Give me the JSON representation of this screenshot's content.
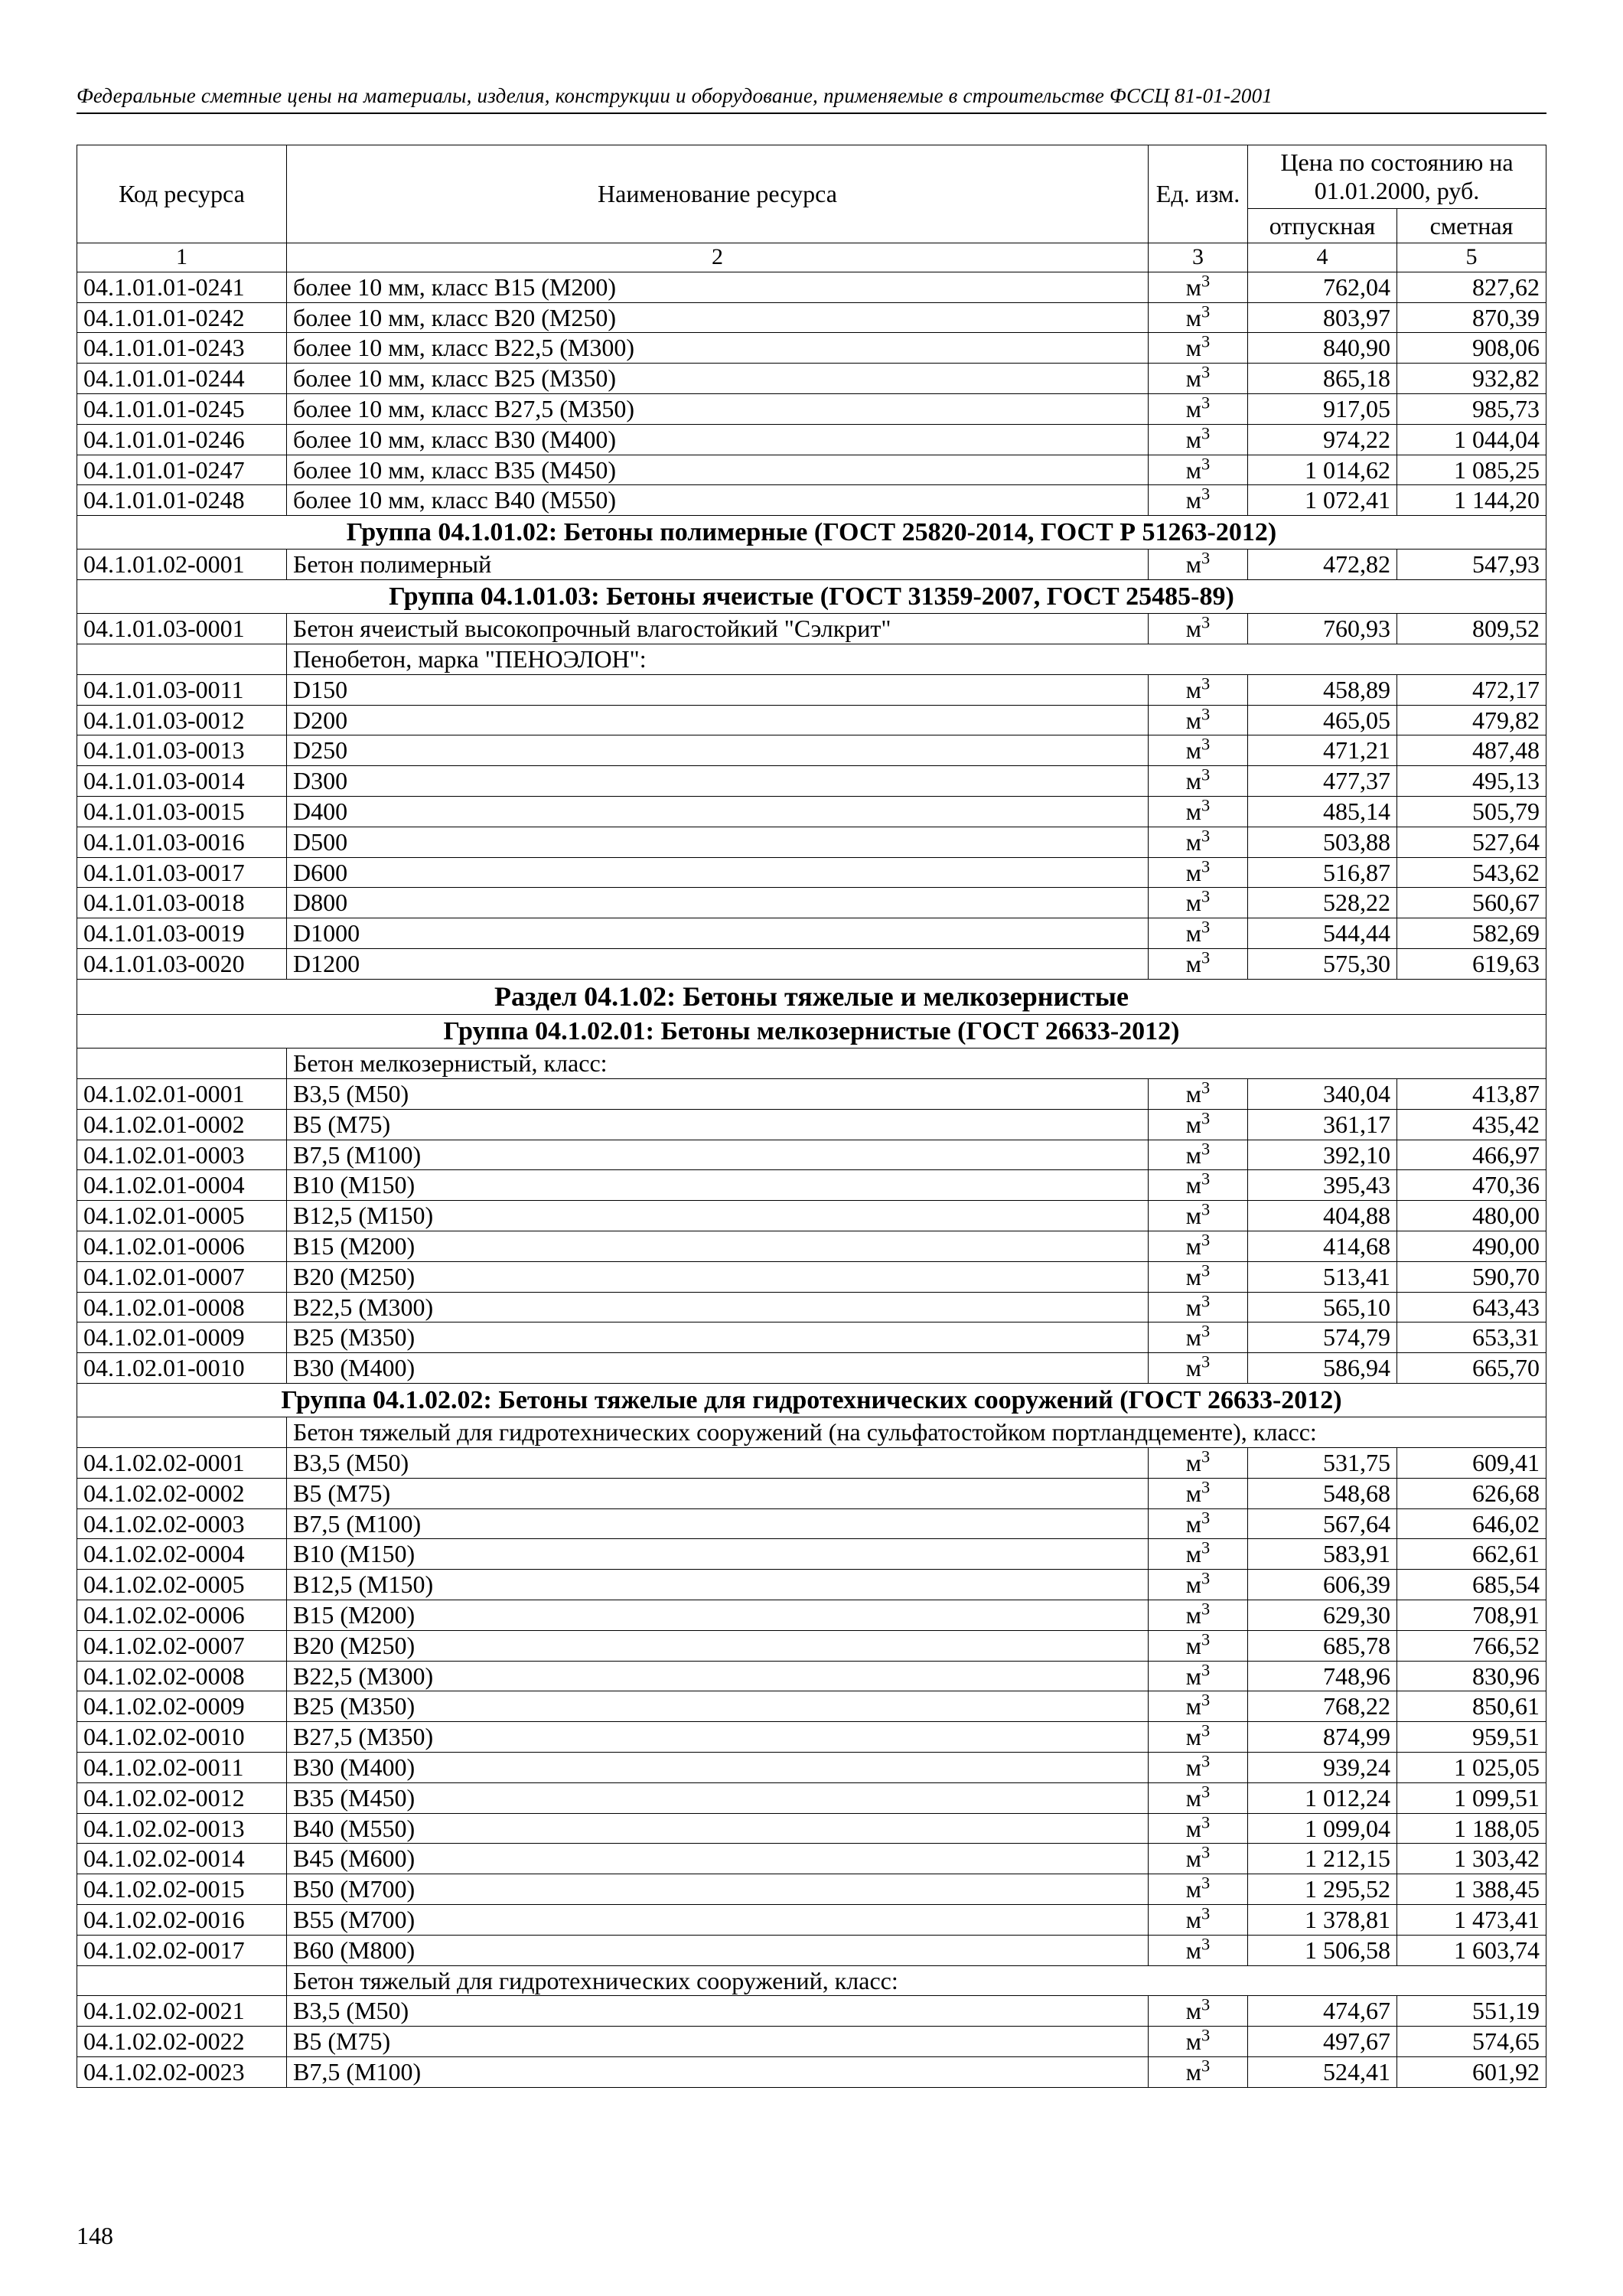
{
  "header_text": "Федеральные сметные цены на материалы, изделия, конструкции и оборудование, применяемые в строительстве ФССЦ 81-01-2001",
  "page_number": "148",
  "unit_m3_html": "м<sup>3</sup>",
  "table": {
    "head": {
      "code": "Код ресурса",
      "name": "Наименование ресурса",
      "unit": "Ед. изм.",
      "price_group": "Цена по состоянию на 01.01.2000, руб.",
      "p1": "отпускная",
      "p2": "сметная",
      "n1": "1",
      "n2": "2",
      "n3": "3",
      "n4": "4",
      "n5": "5"
    }
  },
  "rows": [
    {
      "t": "d",
      "code": "04.1.01.01-0241",
      "name": "более 10 мм, класс В15 (М200)",
      "unit": "m3",
      "p1": "762,04",
      "p2": "827,62"
    },
    {
      "t": "d",
      "code": "04.1.01.01-0242",
      "name": "более 10 мм, класс В20 (М250)",
      "unit": "m3",
      "p1": "803,97",
      "p2": "870,39"
    },
    {
      "t": "d",
      "code": "04.1.01.01-0243",
      "name": "более 10 мм, класс В22,5 (М300)",
      "unit": "m3",
      "p1": "840,90",
      "p2": "908,06"
    },
    {
      "t": "d",
      "code": "04.1.01.01-0244",
      "name": "более 10 мм, класс В25 (М350)",
      "unit": "m3",
      "p1": "865,18",
      "p2": "932,82"
    },
    {
      "t": "d",
      "code": "04.1.01.01-0245",
      "name": "более 10 мм, класс В27,5 (М350)",
      "unit": "m3",
      "p1": "917,05",
      "p2": "985,73"
    },
    {
      "t": "d",
      "code": "04.1.01.01-0246",
      "name": "более 10 мм, класс В30 (М400)",
      "unit": "m3",
      "p1": "974,22",
      "p2": "1 044,04"
    },
    {
      "t": "d",
      "code": "04.1.01.01-0247",
      "name": "более 10 мм, класс В35 (М450)",
      "unit": "m3",
      "p1": "1 014,62",
      "p2": "1 085,25"
    },
    {
      "t": "d",
      "code": "04.1.01.01-0248",
      "name": "более 10 мм, класс В40 (М550)",
      "unit": "m3",
      "p1": "1 072,41",
      "p2": "1 144,20"
    },
    {
      "t": "s",
      "title": "Группа 04.1.01.02: Бетоны полимерные (ГОСТ 25820-2014, ГОСТ Р 51263-2012)"
    },
    {
      "t": "d",
      "code": "04.1.01.02-0001",
      "name": "Бетон полимерный",
      "unit": "m3",
      "p1": "472,82",
      "p2": "547,93"
    },
    {
      "t": "s",
      "title": "Группа 04.1.01.03: Бетоны ячеистые (ГОСТ 31359-2007, ГОСТ 25485-89)"
    },
    {
      "t": "d",
      "code": "04.1.01.03-0001",
      "name": "Бетон ячеистый высокопрочный влагостойкий \"Сэлкрит\"",
      "unit": "m3",
      "p1": "760,93",
      "p2": "809,52"
    },
    {
      "t": "h",
      "name": "Пенобетон, марка \"ПЕНОЭЛОН\":"
    },
    {
      "t": "d",
      "code": "04.1.01.03-0011",
      "name": "D150",
      "unit": "m3",
      "p1": "458,89",
      "p2": "472,17"
    },
    {
      "t": "d",
      "code": "04.1.01.03-0012",
      "name": "D200",
      "unit": "m3",
      "p1": "465,05",
      "p2": "479,82"
    },
    {
      "t": "d",
      "code": "04.1.01.03-0013",
      "name": "D250",
      "unit": "m3",
      "p1": "471,21",
      "p2": "487,48"
    },
    {
      "t": "d",
      "code": "04.1.01.03-0014",
      "name": "D300",
      "unit": "m3",
      "p1": "477,37",
      "p2": "495,13"
    },
    {
      "t": "d",
      "code": "04.1.01.03-0015",
      "name": "D400",
      "unit": "m3",
      "p1": "485,14",
      "p2": "505,79"
    },
    {
      "t": "d",
      "code": "04.1.01.03-0016",
      "name": "D500",
      "unit": "m3",
      "p1": "503,88",
      "p2": "527,64"
    },
    {
      "t": "d",
      "code": "04.1.01.03-0017",
      "name": "D600",
      "unit": "m3",
      "p1": "516,87",
      "p2": "543,62"
    },
    {
      "t": "d",
      "code": "04.1.01.03-0018",
      "name": "D800",
      "unit": "m3",
      "p1": "528,22",
      "p2": "560,67"
    },
    {
      "t": "d",
      "code": "04.1.01.03-0019",
      "name": "D1000",
      "unit": "m3",
      "p1": "544,44",
      "p2": "582,69"
    },
    {
      "t": "d",
      "code": "04.1.01.03-0020",
      "name": "D1200",
      "unit": "m3",
      "p1": "575,30",
      "p2": "619,63"
    },
    {
      "t": "s",
      "title": "Раздел 04.1.02: Бетоны тяжелые и мелкозернистые",
      "big": true
    },
    {
      "t": "s",
      "title": "Группа 04.1.02.01: Бетоны мелкозернистые (ГОСТ 26633-2012)"
    },
    {
      "t": "h",
      "name": "Бетон мелкозернистый, класс:"
    },
    {
      "t": "d",
      "code": "04.1.02.01-0001",
      "name": "В3,5 (М50)",
      "unit": "m3",
      "p1": "340,04",
      "p2": "413,87"
    },
    {
      "t": "d",
      "code": "04.1.02.01-0002",
      "name": "В5 (М75)",
      "unit": "m3",
      "p1": "361,17",
      "p2": "435,42"
    },
    {
      "t": "d",
      "code": "04.1.02.01-0003",
      "name": "В7,5 (М100)",
      "unit": "m3",
      "p1": "392,10",
      "p2": "466,97"
    },
    {
      "t": "d",
      "code": "04.1.02.01-0004",
      "name": "В10 (М150)",
      "unit": "m3",
      "p1": "395,43",
      "p2": "470,36"
    },
    {
      "t": "d",
      "code": "04.1.02.01-0005",
      "name": "В12,5 (М150)",
      "unit": "m3",
      "p1": "404,88",
      "p2": "480,00"
    },
    {
      "t": "d",
      "code": "04.1.02.01-0006",
      "name": "В15 (М200)",
      "unit": "m3",
      "p1": "414,68",
      "p2": "490,00"
    },
    {
      "t": "d",
      "code": "04.1.02.01-0007",
      "name": "В20 (М250)",
      "unit": "m3",
      "p1": "513,41",
      "p2": "590,70"
    },
    {
      "t": "d",
      "code": "04.1.02.01-0008",
      "name": "В22,5 (М300)",
      "unit": "m3",
      "p1": "565,10",
      "p2": "643,43"
    },
    {
      "t": "d",
      "code": "04.1.02.01-0009",
      "name": "В25 (М350)",
      "unit": "m3",
      "p1": "574,79",
      "p2": "653,31"
    },
    {
      "t": "d",
      "code": "04.1.02.01-0010",
      "name": "В30 (М400)",
      "unit": "m3",
      "p1": "586,94",
      "p2": "665,70"
    },
    {
      "t": "s",
      "title": "Группа 04.1.02.02: Бетоны тяжелые для гидротехнических сооружений (ГОСТ 26633-2012)"
    },
    {
      "t": "h",
      "name": "Бетон тяжелый для гидротехнических сооружений (на сульфатостойком портландцементе), класс:"
    },
    {
      "t": "d",
      "code": "04.1.02.02-0001",
      "name": "В3,5 (М50)",
      "unit": "m3",
      "p1": "531,75",
      "p2": "609,41"
    },
    {
      "t": "d",
      "code": "04.1.02.02-0002",
      "name": "В5 (М75)",
      "unit": "m3",
      "p1": "548,68",
      "p2": "626,68"
    },
    {
      "t": "d",
      "code": "04.1.02.02-0003",
      "name": "В7,5 (М100)",
      "unit": "m3",
      "p1": "567,64",
      "p2": "646,02"
    },
    {
      "t": "d",
      "code": "04.1.02.02-0004",
      "name": "В10 (М150)",
      "unit": "m3",
      "p1": "583,91",
      "p2": "662,61"
    },
    {
      "t": "d",
      "code": "04.1.02.02-0005",
      "name": "В12,5 (М150)",
      "unit": "m3",
      "p1": "606,39",
      "p2": "685,54"
    },
    {
      "t": "d",
      "code": "04.1.02.02-0006",
      "name": "В15 (М200)",
      "unit": "m3",
      "p1": "629,30",
      "p2": "708,91"
    },
    {
      "t": "d",
      "code": "04.1.02.02-0007",
      "name": "В20 (М250)",
      "unit": "m3",
      "p1": "685,78",
      "p2": "766,52"
    },
    {
      "t": "d",
      "code": "04.1.02.02-0008",
      "name": "В22,5 (М300)",
      "unit": "m3",
      "p1": "748,96",
      "p2": "830,96"
    },
    {
      "t": "d",
      "code": "04.1.02.02-0009",
      "name": "В25 (М350)",
      "unit": "m3",
      "p1": "768,22",
      "p2": "850,61"
    },
    {
      "t": "d",
      "code": "04.1.02.02-0010",
      "name": "В27,5 (М350)",
      "unit": "m3",
      "p1": "874,99",
      "p2": "959,51"
    },
    {
      "t": "d",
      "code": "04.1.02.02-0011",
      "name": "В30 (М400)",
      "unit": "m3",
      "p1": "939,24",
      "p2": "1 025,05"
    },
    {
      "t": "d",
      "code": "04.1.02.02-0012",
      "name": "В35 (М450)",
      "unit": "m3",
      "p1": "1 012,24",
      "p2": "1 099,51"
    },
    {
      "t": "d",
      "code": "04.1.02.02-0013",
      "name": "В40 (М550)",
      "unit": "m3",
      "p1": "1 099,04",
      "p2": "1 188,05"
    },
    {
      "t": "d",
      "code": "04.1.02.02-0014",
      "name": "В45 (М600)",
      "unit": "m3",
      "p1": "1 212,15",
      "p2": "1 303,42"
    },
    {
      "t": "d",
      "code": "04.1.02.02-0015",
      "name": "В50 (М700)",
      "unit": "m3",
      "p1": "1 295,52",
      "p2": "1 388,45"
    },
    {
      "t": "d",
      "code": "04.1.02.02-0016",
      "name": "В55 (М700)",
      "unit": "m3",
      "p1": "1 378,81",
      "p2": "1 473,41"
    },
    {
      "t": "d",
      "code": "04.1.02.02-0017",
      "name": "В60 (М800)",
      "unit": "m3",
      "p1": "1 506,58",
      "p2": "1 603,74"
    },
    {
      "t": "h",
      "name": "Бетон тяжелый для гидротехнических сооружений, класс:"
    },
    {
      "t": "d",
      "code": "04.1.02.02-0021",
      "name": "В3,5 (М50)",
      "unit": "m3",
      "p1": "474,67",
      "p2": "551,19"
    },
    {
      "t": "d",
      "code": "04.1.02.02-0022",
      "name": "В5 (М75)",
      "unit": "m3",
      "p1": "497,67",
      "p2": "574,65"
    },
    {
      "t": "d",
      "code": "04.1.02.02-0023",
      "name": "В7,5 (М100)",
      "unit": "m3",
      "p1": "524,41",
      "p2": "601,92"
    }
  ]
}
